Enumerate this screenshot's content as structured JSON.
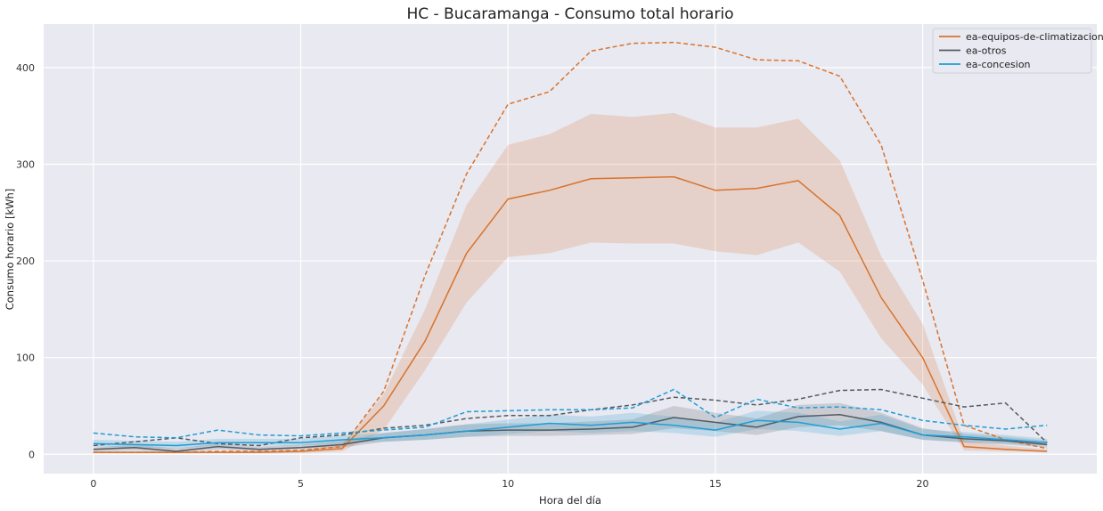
{
  "chart_data": {
    "type": "line",
    "title": "HC - Bucaramanga - Consumo total horario",
    "xlabel": "Hora del día",
    "ylabel": "Consumo horario [kWh]",
    "xlim": [
      -1.2,
      24.2
    ],
    "ylim": [
      -20,
      445
    ],
    "xticks": [
      0,
      5,
      10,
      15,
      20
    ],
    "yticks": [
      0,
      100,
      200,
      300,
      400
    ],
    "grid": true,
    "background": "#e9e9f1",
    "grid_color": "#ffffff",
    "legend_position": "top-right",
    "x": [
      0,
      1,
      2,
      3,
      4,
      5,
      6,
      7,
      8,
      9,
      10,
      11,
      12,
      13,
      14,
      15,
      16,
      17,
      18,
      19,
      20,
      21,
      22,
      23
    ],
    "series": [
      {
        "name": "ea-equipos-de-climatizacion",
        "color": "#d8732e",
        "mean": [
          2,
          2,
          2,
          2,
          2,
          3,
          6,
          50,
          117,
          208,
          264,
          273,
          285,
          286,
          287,
          273,
          275,
          283,
          247,
          162,
          100,
          8,
          5,
          3
        ],
        "band_low": [
          1,
          1,
          1,
          1,
          1,
          1,
          3,
          25,
          87,
          157,
          204,
          208,
          219,
          218,
          218,
          210,
          206,
          219,
          189,
          120,
          72,
          4,
          3,
          2
        ],
        "band_high": [
          3,
          3,
          3,
          3,
          3,
          4,
          10,
          62,
          150,
          258,
          320,
          331,
          352,
          349,
          353,
          338,
          338,
          347,
          304,
          205,
          135,
          14,
          9,
          5
        ],
        "max": [
          2,
          2,
          2,
          3,
          3,
          4,
          8,
          65,
          185,
          290,
          362,
          375,
          417,
          425,
          426,
          421,
          408,
          407,
          391,
          320,
          180,
          30,
          15,
          6
        ]
      },
      {
        "name": "ea-otros",
        "color": "#555a60",
        "mean": [
          5,
          7,
          3,
          8,
          5,
          7,
          10,
          17,
          20,
          24,
          25,
          25,
          26,
          28,
          38,
          33,
          28,
          39,
          41,
          33,
          20,
          16,
          14,
          10
        ],
        "band_low": [
          3,
          4,
          2,
          5,
          3,
          5,
          7,
          13,
          15,
          18,
          19,
          19,
          20,
          21,
          27,
          24,
          20,
          28,
          30,
          24,
          15,
          12,
          10,
          7
        ],
        "band_high": [
          7,
          10,
          6,
          11,
          8,
          10,
          14,
          22,
          26,
          31,
          32,
          32,
          34,
          36,
          50,
          43,
          37,
          51,
          53,
          43,
          27,
          21,
          18,
          14
        ],
        "max": [
          9,
          13,
          17,
          11,
          9,
          17,
          20,
          27,
          30,
          37,
          40,
          40,
          46,
          51,
          59,
          56,
          51,
          57,
          66,
          67,
          58,
          49,
          53,
          12
        ]
      },
      {
        "name": "ea-concesion",
        "color": "#1f9dd4",
        "mean": [
          11,
          10,
          9,
          12,
          12,
          12,
          15,
          17,
          20,
          24,
          28,
          32,
          30,
          33,
          30,
          25,
          35,
          33,
          26,
          32,
          20,
          18,
          15,
          12
        ],
        "band_low": [
          8,
          7,
          6,
          9,
          9,
          9,
          11,
          13,
          15,
          18,
          21,
          24,
          22,
          24,
          22,
          18,
          26,
          24,
          19,
          24,
          15,
          13,
          11,
          9
        ],
        "band_high": [
          15,
          14,
          13,
          16,
          16,
          16,
          20,
          22,
          26,
          31,
          36,
          41,
          39,
          43,
          39,
          33,
          45,
          43,
          34,
          41,
          26,
          23,
          20,
          16
        ],
        "max": [
          22,
          18,
          17,
          25,
          20,
          19,
          22,
          25,
          28,
          44,
          45,
          46,
          46,
          48,
          67,
          38,
          57,
          48,
          49,
          46,
          35,
          30,
          26,
          30
        ]
      }
    ]
  }
}
